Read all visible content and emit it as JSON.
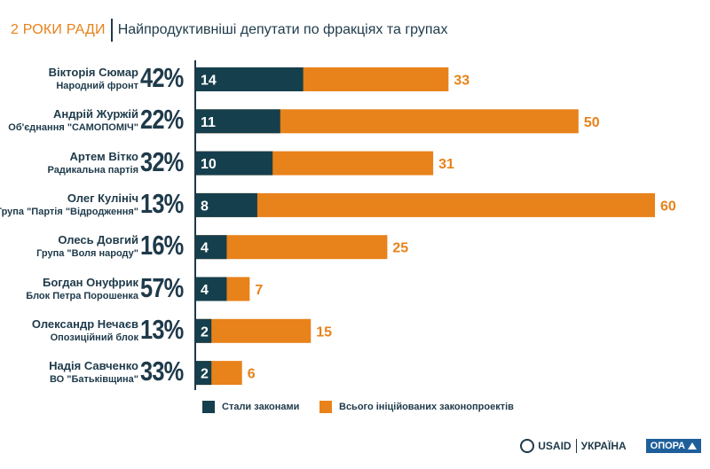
{
  "header": {
    "tag": "2 РОКИ РАДИ",
    "title": "Найпродуктивніші депутати по фракціях та групах"
  },
  "colors": {
    "laws": "#163f4d",
    "initiated": "#e8821a",
    "text": "#1e3a4a"
  },
  "chart_data": {
    "type": "bar",
    "orientation": "horizontal",
    "stacking": "overlay",
    "title": "Найпродуктивніші депутати по фракціях та групах",
    "categories": [
      {
        "name": "Вікторія Сюмар",
        "party": "Народний фронт",
        "pct": "42%"
      },
      {
        "name": "Андрій Журжій",
        "party": "Об'єднання \"САМОПОМІЧ\"",
        "pct": "22%"
      },
      {
        "name": "Артем Вітко",
        "party": "Радикальна партія",
        "pct": "32%"
      },
      {
        "name": "Олег Кулініч",
        "party": "Група \"Партія \"Відродження\"",
        "pct": "13%"
      },
      {
        "name": "Олесь Довгий",
        "party": "Група \"Воля народу\"",
        "pct": "16%"
      },
      {
        "name": "Богдан Онуфрик",
        "party": "Блок  Петра Порошенка",
        "pct": "57%"
      },
      {
        "name": "Олександр Нечаєв",
        "party": "Опозиційний блок",
        "pct": "13%"
      },
      {
        "name": "Надія Савченко",
        "party": "ВО \"Батьківщина\"",
        "pct": "33%"
      }
    ],
    "series": [
      {
        "name": "Стали законами",
        "values": [
          14,
          11,
          10,
          8,
          4,
          4,
          2,
          2
        ]
      },
      {
        "name": "Всього ініційованих законопроектів",
        "values": [
          33,
          50,
          31,
          60,
          25,
          7,
          15,
          6
        ]
      }
    ],
    "xlim": [
      0,
      60
    ],
    "legend": "bottom"
  },
  "footer": {
    "usaid": "USAID",
    "ukraine": "УКРАЇНА",
    "opora": "ОПОРА"
  }
}
